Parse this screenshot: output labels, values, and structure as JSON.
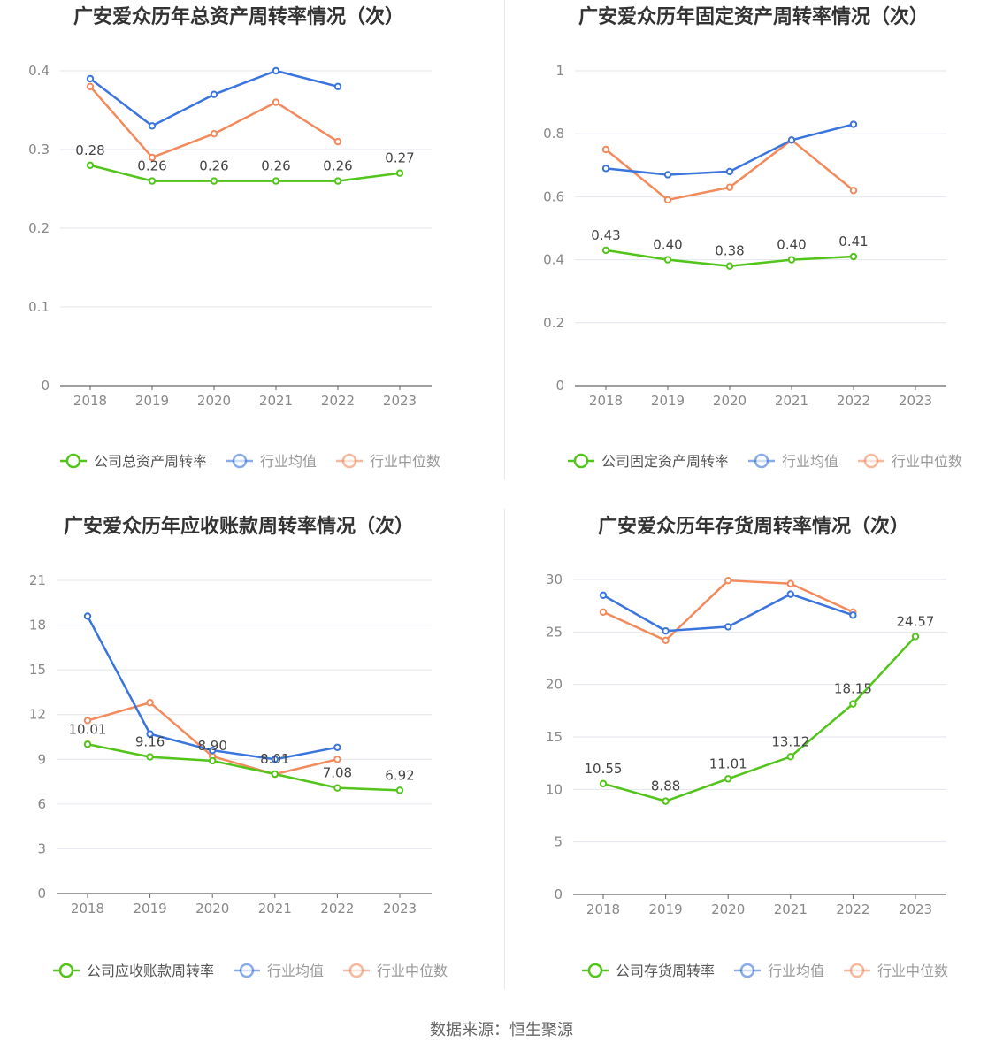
{
  "source_text": "数据来源：恒生聚源",
  "colors": {
    "company": "#52c41a",
    "avg": "#3a75dd",
    "median": "#f28a5c",
    "grid": "#e3e6ee",
    "axis": "#666666",
    "tick": "#888888",
    "label": "#444444",
    "title": "#333333"
  },
  "chart_data": [
    {
      "type": "line",
      "title": "广安爱众历年总资产周转率情况（次）",
      "x": [
        "2018",
        "2019",
        "2020",
        "2021",
        "2022",
        "2023"
      ],
      "ylim": [
        0,
        0.4
      ],
      "yticks": [
        "0",
        "0.1",
        "0.2",
        "0.3",
        "0.4"
      ],
      "yticks_values": [
        0,
        0.1,
        0.2,
        0.3,
        0.4
      ],
      "grid": true,
      "legend_position": "bottom",
      "series": [
        {
          "name": "公司总资产周转率",
          "role": "company",
          "values": [
            0.28,
            0.26,
            0.26,
            0.26,
            0.26,
            0.27
          ],
          "labels": [
            "0.28",
            "0.26",
            "0.26",
            "0.26",
            "0.26",
            "0.27"
          ]
        },
        {
          "name": "行业均值",
          "role": "avg",
          "values": [
            0.39,
            0.33,
            0.37,
            0.4,
            0.38,
            null
          ]
        },
        {
          "name": "行业中位数",
          "role": "median",
          "values": [
            0.38,
            0.29,
            0.32,
            0.36,
            0.31,
            null
          ]
        }
      ]
    },
    {
      "type": "line",
      "title": "广安爱众历年固定资产周转率情况（次）",
      "x": [
        "2018",
        "2019",
        "2020",
        "2021",
        "2022",
        "2023"
      ],
      "ylim": [
        0,
        1
      ],
      "yticks": [
        "0",
        "0.2",
        "0.4",
        "0.6",
        "0.8",
        "1"
      ],
      "yticks_values": [
        0,
        0.2,
        0.4,
        0.6,
        0.8,
        1
      ],
      "grid": true,
      "legend_position": "bottom",
      "series": [
        {
          "name": "公司固定资产周转率",
          "role": "company",
          "values": [
            0.43,
            0.4,
            0.38,
            0.4,
            0.41,
            null
          ],
          "labels": [
            "0.43",
            "0.40",
            "0.38",
            "0.40",
            "0.41",
            null
          ]
        },
        {
          "name": "行业均值",
          "role": "avg",
          "values": [
            0.69,
            0.67,
            0.68,
            0.78,
            0.83,
            null
          ]
        },
        {
          "name": "行业中位数",
          "role": "median",
          "values": [
            0.75,
            0.59,
            0.63,
            0.78,
            0.62,
            null
          ]
        }
      ]
    },
    {
      "type": "line",
      "title": "广安爱众历年应收账款周转率情况（次）",
      "x": [
        "2018",
        "2019",
        "2020",
        "2021",
        "2022",
        "2023"
      ],
      "ylim": [
        0,
        21
      ],
      "yticks": [
        "0",
        "3",
        "6",
        "9",
        "12",
        "15",
        "18",
        "21"
      ],
      "yticks_values": [
        0,
        3,
        6,
        9,
        12,
        15,
        18,
        21
      ],
      "grid": true,
      "legend_position": "bottom",
      "series": [
        {
          "name": "公司应收账款周转率",
          "role": "company",
          "values": [
            10.01,
            9.16,
            8.9,
            8.01,
            7.08,
            6.92
          ],
          "labels": [
            "10.01",
            "9.16",
            "8.90",
            "8.01",
            "7.08",
            "6.92"
          ]
        },
        {
          "name": "行业均值",
          "role": "avg",
          "values": [
            18.6,
            10.7,
            9.6,
            9.0,
            9.8,
            null
          ]
        },
        {
          "name": "行业中位数",
          "role": "median",
          "values": [
            11.6,
            12.8,
            9.2,
            8.0,
            9.0,
            null
          ]
        }
      ]
    },
    {
      "type": "line",
      "title": "广安爱众历年存货周转率情况（次）",
      "x": [
        "2018",
        "2019",
        "2020",
        "2021",
        "2022",
        "2023"
      ],
      "ylim": [
        0,
        30
      ],
      "yticks": [
        "0",
        "5",
        "10",
        "15",
        "20",
        "25",
        "30"
      ],
      "yticks_values": [
        0,
        5,
        10,
        15,
        20,
        25,
        30
      ],
      "grid": true,
      "legend_position": "bottom",
      "series": [
        {
          "name": "公司存货周转率",
          "role": "company",
          "values": [
            10.55,
            8.88,
            11.01,
            13.12,
            18.15,
            24.57
          ],
          "labels": [
            "10.55",
            "8.88",
            "11.01",
            "13.12",
            "18.15",
            "24.57"
          ]
        },
        {
          "name": "行业均值",
          "role": "avg",
          "values": [
            28.5,
            25.1,
            25.5,
            28.6,
            26.6,
            null
          ]
        },
        {
          "name": "行业中位数",
          "role": "median",
          "values": [
            26.9,
            24.2,
            29.9,
            29.6,
            26.9,
            null
          ]
        }
      ]
    }
  ]
}
